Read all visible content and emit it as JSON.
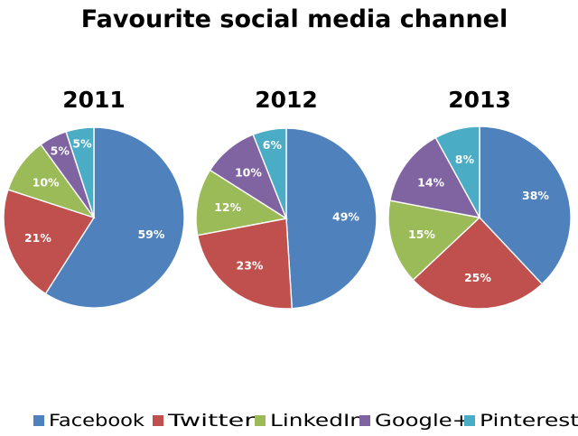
{
  "chart_data": {
    "type": "pie",
    "title": "Favourite social media channel",
    "categories": [
      "Facebook",
      "Twitter",
      "LinkedIn",
      "Google+",
      "Pinterest"
    ],
    "colors": {
      "Facebook": "#4F81BD",
      "Twitter": "#C0504D",
      "LinkedIn": "#9BBB59",
      "Google+": "#8064A2",
      "Pinterest": "#4BACC6"
    },
    "legend_position": "bottom",
    "pies": [
      {
        "title": "2011",
        "values": [
          59,
          21,
          10,
          5,
          5
        ],
        "labels": [
          "59%",
          "21%",
          "10%",
          "5%",
          "5%"
        ]
      },
      {
        "title": "2012",
        "values": [
          49,
          23,
          12,
          10,
          6
        ],
        "labels": [
          "49%",
          "23%",
          "12%",
          "10%",
          "6%"
        ]
      },
      {
        "title": "2013",
        "values": [
          38,
          25,
          15,
          14,
          8
        ],
        "labels": [
          "38%",
          "25%",
          "15%",
          "14%",
          "8%"
        ]
      }
    ]
  }
}
